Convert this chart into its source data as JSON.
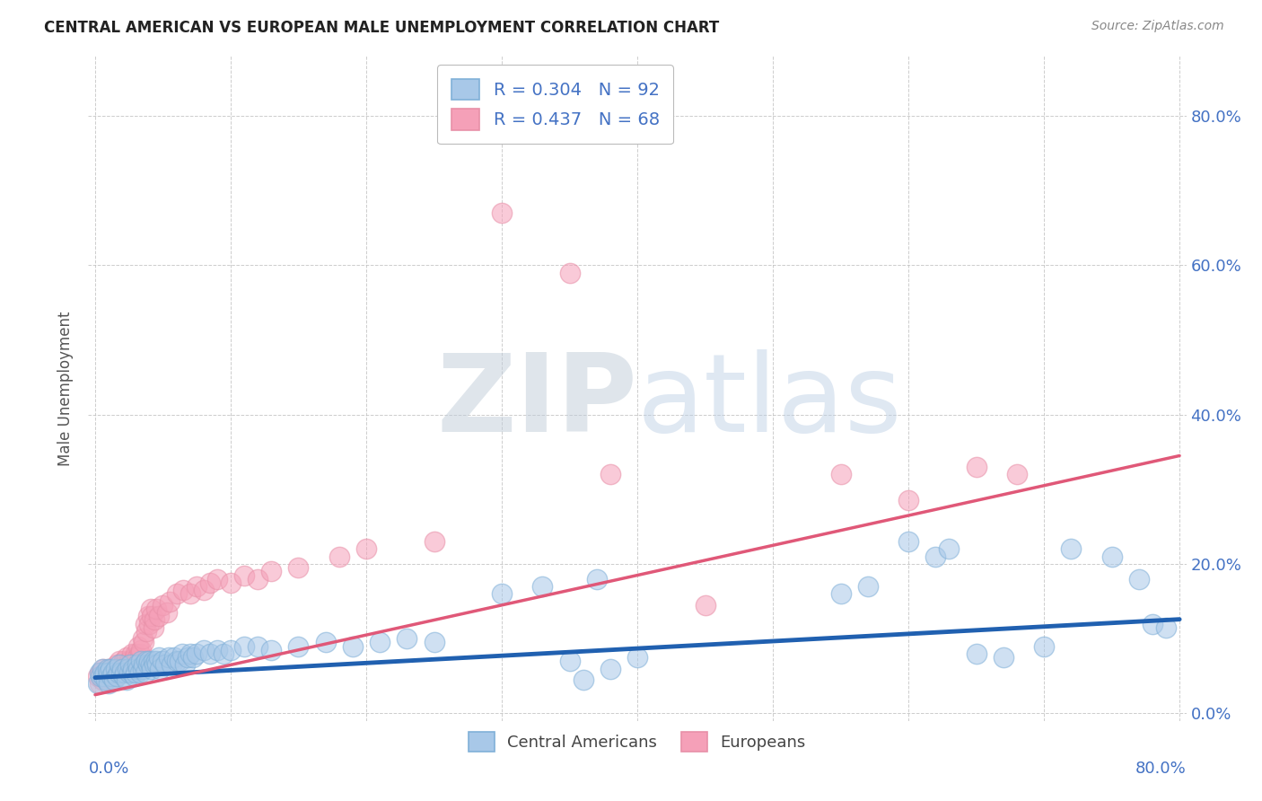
{
  "title": "CENTRAL AMERICAN VS EUROPEAN MALE UNEMPLOYMENT CORRELATION CHART",
  "source": "Source: ZipAtlas.com",
  "ylabel": "Male Unemployment",
  "watermark_zip": "ZIP",
  "watermark_atlas": "atlas",
  "background_color": "#ffffff",
  "legend_entries": [
    {
      "label": "Central Americans",
      "color": "#a8c8e8",
      "R": 0.304,
      "N": 92
    },
    {
      "label": "Europeans",
      "color": "#f5a0b8",
      "R": 0.437,
      "N": 68
    }
  ],
  "blue_scatter": [
    [
      0.002,
      0.04
    ],
    [
      0.003,
      0.055
    ],
    [
      0.004,
      0.05
    ],
    [
      0.005,
      0.06
    ],
    [
      0.006,
      0.05
    ],
    [
      0.007,
      0.055
    ],
    [
      0.008,
      0.045
    ],
    [
      0.009,
      0.06
    ],
    [
      0.01,
      0.055
    ],
    [
      0.01,
      0.04
    ],
    [
      0.011,
      0.06
    ],
    [
      0.012,
      0.05
    ],
    [
      0.013,
      0.055
    ],
    [
      0.014,
      0.045
    ],
    [
      0.015,
      0.06
    ],
    [
      0.016,
      0.05
    ],
    [
      0.017,
      0.055
    ],
    [
      0.018,
      0.065
    ],
    [
      0.019,
      0.055
    ],
    [
      0.02,
      0.06
    ],
    [
      0.021,
      0.05
    ],
    [
      0.022,
      0.055
    ],
    [
      0.023,
      0.045
    ],
    [
      0.024,
      0.06
    ],
    [
      0.025,
      0.055
    ],
    [
      0.026,
      0.065
    ],
    [
      0.027,
      0.055
    ],
    [
      0.028,
      0.06
    ],
    [
      0.029,
      0.05
    ],
    [
      0.03,
      0.055
    ],
    [
      0.031,
      0.065
    ],
    [
      0.032,
      0.06
    ],
    [
      0.033,
      0.055
    ],
    [
      0.034,
      0.07
    ],
    [
      0.035,
      0.06
    ],
    [
      0.036,
      0.065
    ],
    [
      0.037,
      0.055
    ],
    [
      0.038,
      0.07
    ],
    [
      0.039,
      0.065
    ],
    [
      0.04,
      0.07
    ],
    [
      0.041,
      0.065
    ],
    [
      0.042,
      0.06
    ],
    [
      0.043,
      0.07
    ],
    [
      0.044,
      0.065
    ],
    [
      0.045,
      0.07
    ],
    [
      0.046,
      0.065
    ],
    [
      0.047,
      0.075
    ],
    [
      0.048,
      0.06
    ],
    [
      0.05,
      0.07
    ],
    [
      0.052,
      0.065
    ],
    [
      0.054,
      0.075
    ],
    [
      0.056,
      0.065
    ],
    [
      0.058,
      0.075
    ],
    [
      0.06,
      0.07
    ],
    [
      0.062,
      0.07
    ],
    [
      0.064,
      0.08
    ],
    [
      0.066,
      0.065
    ],
    [
      0.068,
      0.075
    ],
    [
      0.07,
      0.08
    ],
    [
      0.072,
      0.075
    ],
    [
      0.075,
      0.08
    ],
    [
      0.08,
      0.085
    ],
    [
      0.085,
      0.08
    ],
    [
      0.09,
      0.085
    ],
    [
      0.095,
      0.08
    ],
    [
      0.1,
      0.085
    ],
    [
      0.11,
      0.09
    ],
    [
      0.12,
      0.09
    ],
    [
      0.13,
      0.085
    ],
    [
      0.15,
      0.09
    ],
    [
      0.17,
      0.095
    ],
    [
      0.19,
      0.09
    ],
    [
      0.21,
      0.095
    ],
    [
      0.23,
      0.1
    ],
    [
      0.25,
      0.095
    ],
    [
      0.3,
      0.16
    ],
    [
      0.33,
      0.17
    ],
    [
      0.37,
      0.18
    ],
    [
      0.55,
      0.16
    ],
    [
      0.57,
      0.17
    ],
    [
      0.6,
      0.23
    ],
    [
      0.62,
      0.21
    ],
    [
      0.63,
      0.22
    ],
    [
      0.65,
      0.08
    ],
    [
      0.67,
      0.075
    ],
    [
      0.7,
      0.09
    ],
    [
      0.72,
      0.22
    ],
    [
      0.75,
      0.21
    ],
    [
      0.77,
      0.18
    ],
    [
      0.78,
      0.12
    ],
    [
      0.79,
      0.115
    ],
    [
      0.35,
      0.07
    ],
    [
      0.36,
      0.045
    ],
    [
      0.38,
      0.06
    ],
    [
      0.4,
      0.075
    ]
  ],
  "pink_scatter": [
    [
      0.002,
      0.05
    ],
    [
      0.003,
      0.04
    ],
    [
      0.004,
      0.055
    ],
    [
      0.005,
      0.045
    ],
    [
      0.006,
      0.06
    ],
    [
      0.007,
      0.05
    ],
    [
      0.008,
      0.055
    ],
    [
      0.009,
      0.045
    ],
    [
      0.01,
      0.06
    ],
    [
      0.011,
      0.05
    ],
    [
      0.012,
      0.055
    ],
    [
      0.013,
      0.045
    ],
    [
      0.014,
      0.06
    ],
    [
      0.015,
      0.055
    ],
    [
      0.016,
      0.065
    ],
    [
      0.017,
      0.055
    ],
    [
      0.018,
      0.07
    ],
    [
      0.019,
      0.06
    ],
    [
      0.02,
      0.065
    ],
    [
      0.021,
      0.07
    ],
    [
      0.022,
      0.065
    ],
    [
      0.023,
      0.075
    ],
    [
      0.024,
      0.065
    ],
    [
      0.025,
      0.07
    ],
    [
      0.026,
      0.065
    ],
    [
      0.027,
      0.08
    ],
    [
      0.028,
      0.07
    ],
    [
      0.029,
      0.075
    ],
    [
      0.03,
      0.08
    ],
    [
      0.031,
      0.075
    ],
    [
      0.032,
      0.09
    ],
    [
      0.033,
      0.08
    ],
    [
      0.034,
      0.085
    ],
    [
      0.035,
      0.1
    ],
    [
      0.036,
      0.095
    ],
    [
      0.037,
      0.12
    ],
    [
      0.038,
      0.11
    ],
    [
      0.039,
      0.13
    ],
    [
      0.04,
      0.12
    ],
    [
      0.041,
      0.14
    ],
    [
      0.042,
      0.13
    ],
    [
      0.043,
      0.115
    ],
    [
      0.044,
      0.125
    ],
    [
      0.045,
      0.14
    ],
    [
      0.047,
      0.13
    ],
    [
      0.05,
      0.145
    ],
    [
      0.053,
      0.135
    ],
    [
      0.055,
      0.15
    ],
    [
      0.06,
      0.16
    ],
    [
      0.065,
      0.165
    ],
    [
      0.07,
      0.16
    ],
    [
      0.075,
      0.17
    ],
    [
      0.08,
      0.165
    ],
    [
      0.085,
      0.175
    ],
    [
      0.09,
      0.18
    ],
    [
      0.1,
      0.175
    ],
    [
      0.11,
      0.185
    ],
    [
      0.12,
      0.18
    ],
    [
      0.13,
      0.19
    ],
    [
      0.15,
      0.195
    ],
    [
      0.18,
      0.21
    ],
    [
      0.2,
      0.22
    ],
    [
      0.25,
      0.23
    ],
    [
      0.3,
      0.67
    ],
    [
      0.35,
      0.59
    ],
    [
      0.38,
      0.32
    ],
    [
      0.45,
      0.145
    ],
    [
      0.55,
      0.32
    ],
    [
      0.6,
      0.285
    ],
    [
      0.65,
      0.33
    ],
    [
      0.68,
      0.32
    ]
  ],
  "blue_line": {
    "x0": 0.0,
    "y0": 0.048,
    "x1": 0.8,
    "y1": 0.126
  },
  "pink_line": {
    "x0": 0.0,
    "y0": 0.025,
    "x1": 0.8,
    "y1": 0.345
  },
  "xlim": [
    -0.005,
    0.805
  ],
  "ylim": [
    -0.01,
    0.88
  ],
  "ytick_vals": [
    0.0,
    0.2,
    0.4,
    0.6,
    0.8
  ],
  "xtick_vals": [
    0.0,
    0.1,
    0.2,
    0.3,
    0.4,
    0.5,
    0.6,
    0.7,
    0.8
  ]
}
